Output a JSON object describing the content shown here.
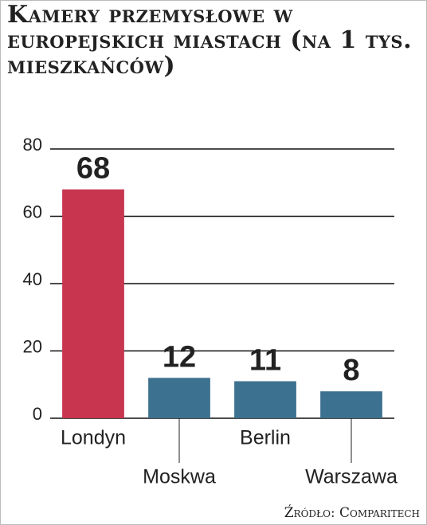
{
  "chart_data": {
    "type": "bar",
    "title": "Kamery przemysłowe w europejskich miastach (na 1 tys. mieszkańców)",
    "source": "Źródło: Comparitech",
    "categories": [
      "Londyn",
      "Moskwa",
      "Berlin",
      "Warszawa"
    ],
    "values": [
      68,
      12,
      11,
      8
    ],
    "colors": [
      "#c8354f",
      "#3d7190",
      "#3d7190",
      "#3d7190"
    ],
    "ylim": [
      0,
      80
    ],
    "yticks": [
      0,
      20,
      40,
      60,
      80
    ],
    "grid": true
  }
}
